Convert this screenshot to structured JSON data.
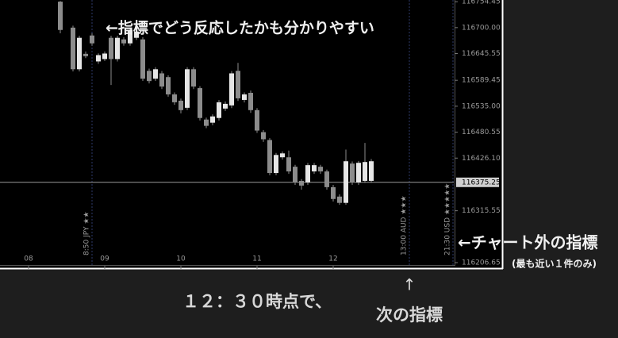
{
  "chart_data": {
    "type": "candlestick",
    "categories": [
      "08",
      null,
      null,
      null,
      null,
      null,
      null,
      null,
      null,
      null,
      null,
      null,
      "09",
      null,
      null,
      null,
      null,
      null,
      null,
      null,
      null,
      null,
      null,
      null,
      "10",
      null,
      null,
      null,
      null,
      null,
      null,
      null,
      null,
      null,
      null,
      null,
      "11",
      null,
      null,
      null,
      null,
      null,
      null,
      null,
      null,
      null,
      null,
      null,
      "12",
      null,
      null,
      null,
      null,
      null,
      null,
      null,
      null,
      null,
      null,
      null,
      null,
      null,
      null,
      null,
      null,
      null,
      null
    ],
    "open": [
      null,
      null,
      null,
      null,
      null,
      116754.5,
      null,
      116700,
      116612.6,
      116645,
      116683.5,
      116629,
      116634,
      116678.6,
      116634,
      116675.3,
      116667,
      116678.6,
      116675.3,
      116609.3,
      116592.8,
      116604,
      116596.1,
      116559.8,
      116546.6,
      116531.7,
      116612.6,
      116573,
      116507,
      116500.4,
      116510.3,
      116530.1,
      116536.7,
      116609.3,
      116548.2,
      116563.1,
      116526.8,
      116480.6,
      116464.1,
      116394.8,
      116427.8,
      116427.8,
      116408,
      116378.3,
      116375,
      116398.1,
      116408,
      116398.1,
      116365.1,
      116345.3,
      116332.1,
      116414.6,
      116375,
      116378.3,
      116378.3,
      null,
      null,
      null,
      null,
      null,
      null,
      null,
      null,
      null,
      null,
      null,
      null
    ],
    "high": [
      null,
      null,
      null,
      null,
      null,
      116756,
      null,
      116704,
      116683,
      116650,
      116688,
      116646,
      116650,
      116683,
      116683,
      116680,
      116700,
      116696,
      116680,
      116614,
      116617,
      116609,
      116600,
      116564,
      116551,
      116617,
      116617,
      116577,
      116511,
      116518,
      116548,
      116545,
      116609,
      116626,
      116564,
      116568,
      116531,
      116485,
      116468,
      116437,
      116440,
      116442,
      116412,
      116382,
      116416,
      116416,
      116412,
      116402,
      116370,
      116350,
      116444,
      116419,
      116420,
      116458,
      116424,
      null,
      null,
      null,
      null,
      null,
      null,
      null,
      null,
      null,
      null,
      null,
      null
    ],
    "low": [
      null,
      null,
      null,
      null,
      null,
      116688,
      null,
      116608,
      116608,
      116636,
      116662,
      116624,
      116630,
      116579.6,
      116629,
      116662,
      116662,
      116674,
      116588,
      116583,
      116588,
      116571,
      116555,
      116538,
      116520,
      116527,
      116571,
      116505,
      116489,
      116495,
      116505,
      116525,
      116531,
      116546,
      116543,
      116521,
      116479,
      116460,
      116390,
      116390,
      116423,
      116393,
      116370,
      116360,
      116370,
      116393,
      116393,
      116360,
      116335,
      116328,
      116328,
      116370,
      116370,
      116374,
      116374,
      null,
      null,
      null,
      null,
      null,
      null,
      null,
      null,
      null,
      null,
      null,
      null
    ],
    "close": [
      null,
      null,
      null,
      null,
      null,
      116695.1,
      null,
      116612.6,
      116678.6,
      116640,
      116667,
      116642.3,
      116645.6,
      116634,
      116678.6,
      116667,
      116695.1,
      116691.8,
      116592.8,
      116587.8,
      116612.6,
      116576.3,
      116559.8,
      116543.3,
      116526.8,
      116612.6,
      116576.3,
      116510.3,
      116493.8,
      116513.6,
      116543.3,
      116540,
      116604,
      116551.5,
      116559.8,
      116526.8,
      116483.9,
      116465.7,
      116394.8,
      116432.7,
      116436,
      116398.1,
      116375,
      116368.4,
      116411.3,
      116411.3,
      116398.1,
      116365.1,
      116340.3,
      116332.1,
      116419.5,
      116375,
      116416.2,
      116417.9,
      116419.5,
      null,
      null,
      null,
      null,
      null,
      null,
      null,
      null,
      null,
      null,
      null,
      null
    ],
    "up_color": "#e6e6e6",
    "down_color": "#8c8c8c",
    "ylim": [
      116200,
      116758
    ],
    "yticks": [
      116754.45,
      {
        "value": 116700,
        "label": "116700.00"
      },
      116645.55,
      116589.45,
      {
        "value": 116535,
        "label": "116535.00"
      },
      116480.55,
      {
        "value": 116426.1,
        "label": "116426.10"
      },
      116315.55,
      116206.65
    ],
    "current_price": 116375.25,
    "events": [
      "8:50 JPY ★★",
      "13:00 AUD ★★★",
      "21:30 USD ★★★★★"
    ],
    "annotations": [
      "←指標でどう反応したかも分かりやすい",
      "←チャート外の指標",
      "(最も近い１件のみ)",
      "１２：３０時点で、",
      "↑",
      "次の指標"
    ]
  }
}
